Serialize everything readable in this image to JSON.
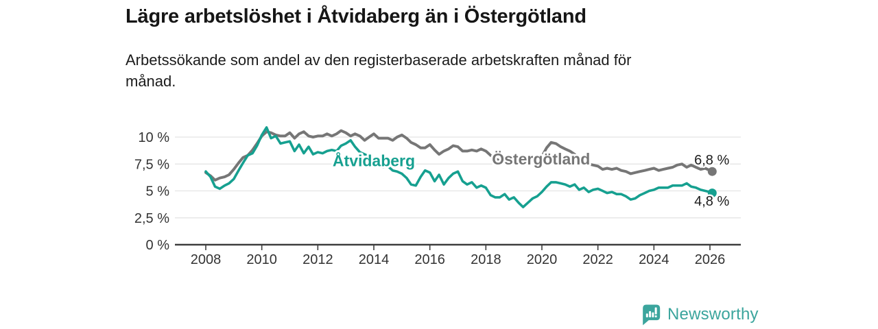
{
  "header": {
    "title": "Lägre arbetslöshet i Åtvidaberg än i Östergötland",
    "subtitle": "Arbetssökande som andel av den registerbaserade arbetskraften månad för\nmånad."
  },
  "branding": {
    "logo_text": "Newsworthy",
    "logo_icon": "bar-chart-speech-bubble",
    "brand_color": "#3ba59d"
  },
  "colors": {
    "atvidaberg_line": "#16a090",
    "ostergotland_line": "#767676",
    "grid": "#e4e4e4",
    "axis": "#3d3d3d",
    "tick_text": "#333333",
    "value_label_text": "#1c1c1c",
    "background": "#ffffff"
  },
  "chart_data": {
    "type": "line",
    "title": "Lägre arbetslöshet i Åtvidaberg än i Östergötland",
    "subtitle": "Arbetssökande som andel av den registerbaserade arbetskraften månad för månad.",
    "unit": "%",
    "grid": "horizontal",
    "legend_position": "inline-labels",
    "xlim": [
      2006.9,
      2027.1
    ],
    "ylim": [
      0,
      11.9
    ],
    "x_ticks": {
      "values": [
        2008,
        2010,
        2012,
        2014,
        2016,
        2018,
        2020,
        2022,
        2024,
        2026
      ],
      "labels": [
        "2008",
        "2010",
        "2012",
        "2014",
        "2016",
        "2018",
        "2020",
        "2022",
        "2024",
        "2026"
      ]
    },
    "y_ticks": {
      "values": [
        0,
        2.5,
        5,
        7.5,
        10
      ],
      "labels": [
        "0 %",
        "2,5 %",
        "5 %",
        "7,5 %",
        "10 %"
      ]
    },
    "x": [
      2008,
      2008.17,
      2008.33,
      2008.5,
      2008.67,
      2008.83,
      2009,
      2009.17,
      2009.33,
      2009.5,
      2009.67,
      2009.83,
      2010,
      2010.17,
      2010.33,
      2010.5,
      2010.67,
      2010.83,
      2011,
      2011.17,
      2011.33,
      2011.5,
      2011.67,
      2011.83,
      2012,
      2012.17,
      2012.33,
      2012.5,
      2012.67,
      2012.83,
      2013,
      2013.17,
      2013.33,
      2013.5,
      2013.67,
      2013.83,
      2014,
      2014.17,
      2014.33,
      2014.5,
      2014.67,
      2014.83,
      2015,
      2015.17,
      2015.33,
      2015.5,
      2015.67,
      2015.83,
      2016,
      2016.17,
      2016.33,
      2016.5,
      2016.67,
      2016.83,
      2017,
      2017.17,
      2017.33,
      2017.5,
      2017.67,
      2017.83,
      2018,
      2018.17,
      2018.33,
      2018.5,
      2018.67,
      2018.83,
      2019,
      2019.17,
      2019.33,
      2019.5,
      2019.67,
      2019.83,
      2020,
      2020.17,
      2020.33,
      2020.5,
      2020.67,
      2020.83,
      2021,
      2021.17,
      2021.33,
      2021.5,
      2021.67,
      2021.83,
      2022,
      2022.17,
      2022.33,
      2022.5,
      2022.67,
      2022.83,
      2023,
      2023.17,
      2023.33,
      2023.5,
      2023.67,
      2023.83,
      2024,
      2024.17,
      2024.33,
      2024.5,
      2024.67,
      2024.83,
      2025,
      2025.17,
      2025.33,
      2025.5,
      2025.67,
      2025.83,
      2026,
      2026.08
    ],
    "series": [
      {
        "name": "Åtvidaberg",
        "color": "#16a090",
        "line_width": 3.6,
        "end_dot": true,
        "name_label_pos": {
          "x": 2014.0,
          "y": 7.3
        },
        "end_label": {
          "text": "4,8 %",
          "x": 2025.44,
          "y": 3.63
        },
        "last_value": 4.8,
        "values": [
          6.8,
          6.3,
          5.4,
          5.2,
          5.5,
          5.7,
          6.1,
          6.9,
          7.6,
          8.3,
          8.5,
          9.2,
          10.2,
          10.9,
          9.9,
          10.1,
          9.4,
          9.5,
          9.6,
          8.7,
          9.3,
          8.5,
          9.1,
          8.4,
          8.6,
          8.5,
          8.7,
          8.8,
          8.7,
          9.2,
          9.4,
          9.7,
          9.1,
          8.6,
          8.4,
          8.2,
          8.0,
          7.6,
          7.2,
          7.3,
          6.9,
          6.8,
          6.6,
          6.2,
          5.6,
          5.5,
          6.3,
          6.9,
          6.7,
          5.9,
          6.5,
          5.6,
          6.2,
          6.6,
          6.8,
          5.9,
          5.6,
          5.8,
          5.3,
          5.5,
          5.3,
          4.6,
          4.4,
          4.4,
          4.7,
          4.2,
          4.4,
          3.9,
          3.5,
          3.9,
          4.3,
          4.5,
          4.9,
          5.4,
          5.8,
          5.8,
          5.7,
          5.6,
          5.4,
          5.6,
          5.1,
          5.3,
          4.9,
          5.1,
          5.2,
          5.0,
          4.8,
          4.9,
          4.7,
          4.7,
          4.5,
          4.2,
          4.3,
          4.6,
          4.8,
          5.0,
          5.1,
          5.3,
          5.3,
          5.3,
          5.5,
          5.5,
          5.5,
          5.7,
          5.4,
          5.3,
          5.1,
          5.0,
          4.9,
          4.8
        ]
      },
      {
        "name": "Östergötland",
        "color": "#767676",
        "line_width": 4,
        "end_dot": true,
        "name_label_pos": {
          "x": 2019.97,
          "y": 7.45
        },
        "end_label": {
          "text": "6,8 %",
          "x": 2025.44,
          "y": 7.45
        },
        "last_value": 6.8,
        "values": [
          6.7,
          6.4,
          6.0,
          6.2,
          6.3,
          6.5,
          7.0,
          7.6,
          8.1,
          8.3,
          8.8,
          9.4,
          10.1,
          10.5,
          10.4,
          10.2,
          10.1,
          10.1,
          10.4,
          9.9,
          10.3,
          10.5,
          10.1,
          10.0,
          10.1,
          10.1,
          10.3,
          10.1,
          10.3,
          10.6,
          10.4,
          10.1,
          10.3,
          10.1,
          9.7,
          10.0,
          10.3,
          9.9,
          9.9,
          9.9,
          9.7,
          10.0,
          10.2,
          9.9,
          9.5,
          9.3,
          9.0,
          9.0,
          9.3,
          8.8,
          8.4,
          8.7,
          8.9,
          9.2,
          9.1,
          8.7,
          8.7,
          8.8,
          8.7,
          8.9,
          8.7,
          8.3,
          8.0,
          7.8,
          7.9,
          7.8,
          7.9,
          7.7,
          7.6,
          7.7,
          7.8,
          8.0,
          8.2,
          9.0,
          9.5,
          9.4,
          9.1,
          8.9,
          8.7,
          8.4,
          8.0,
          7.7,
          7.5,
          7.4,
          7.3,
          7.0,
          7.1,
          7.0,
          7.1,
          6.9,
          6.8,
          6.6,
          6.7,
          6.8,
          6.9,
          7.0,
          7.1,
          6.9,
          7.0,
          7.1,
          7.2,
          7.4,
          7.5,
          7.2,
          7.4,
          7.2,
          7.0,
          7.1,
          6.9,
          6.8
        ]
      }
    ]
  }
}
